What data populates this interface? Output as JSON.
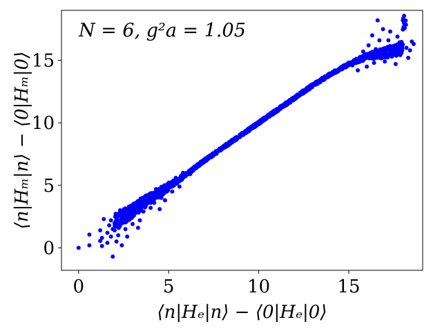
{
  "chart_data": {
    "type": "scatter",
    "title": "",
    "annotation": "N = 6, g²a = 1.05",
    "xlabel": "⟨n|Hₑ|n⟩ − ⟨0|Hₑ|0⟩",
    "ylabel": "⟨n|Hₘ|n⟩ − ⟨0|Hₘ|0⟩",
    "xlim": [
      -0.95,
      19.1
    ],
    "ylim": [
      -1.8,
      19.0
    ],
    "xticks": [
      0,
      5,
      10,
      15
    ],
    "yticks": [
      0,
      5,
      10,
      15
    ],
    "xtick_labels": [
      "0",
      "5",
      "10",
      "15"
    ],
    "ytick_labels": [
      "0",
      "5",
      "10",
      "15"
    ],
    "grid": false,
    "legend": "none",
    "marker_color": "#0000ff",
    "series": [
      {
        "trend": [
          [
            2.0,
            2.0
          ],
          [
            3.0,
            3.0
          ],
          [
            4.0,
            4.0
          ],
          [
            5.0,
            4.9
          ],
          [
            6.0,
            5.9
          ],
          [
            7.0,
            7.0
          ],
          [
            8.0,
            8.0
          ],
          [
            9.0,
            9.0
          ],
          [
            10.0,
            10.0
          ],
          [
            11.0,
            11.0
          ],
          [
            12.0,
            12.0
          ],
          [
            13.0,
            13.0
          ],
          [
            14.0,
            13.9
          ],
          [
            15.0,
            14.7
          ],
          [
            16.0,
            15.3
          ],
          [
            17.0,
            15.6
          ],
          [
            18.0,
            16.0
          ]
        ],
        "points": [
          [
            0.0,
            0.0
          ],
          [
            0.6,
            0.2
          ],
          [
            0.6,
            1.05
          ],
          [
            1.2,
            0.55
          ],
          [
            1.2,
            1.4
          ],
          [
            1.3,
            0.15
          ],
          [
            1.3,
            0.8
          ],
          [
            1.4,
            2.3
          ],
          [
            1.6,
            0.4
          ],
          [
            1.6,
            1.2
          ],
          [
            1.7,
            1.8
          ],
          [
            1.8,
            2.2
          ],
          [
            1.8,
            0.9
          ],
          [
            1.9,
            1.5
          ],
          [
            1.9,
            -0.7
          ],
          [
            2.0,
            1.4
          ],
          [
            2.1,
            0.5
          ],
          [
            2.1,
            2.6
          ],
          [
            2.2,
            1.7
          ],
          [
            2.2,
            1.0
          ],
          [
            2.3,
            3.0
          ],
          [
            2.4,
            0.2
          ],
          [
            2.4,
            2.2
          ],
          [
            2.6,
            1.5
          ],
          [
            2.6,
            2.9
          ],
          [
            2.7,
            0.9
          ],
          [
            2.8,
            3.3
          ],
          [
            3.0,
            1.9
          ],
          [
            3.0,
            2.5
          ],
          [
            3.1,
            3.4
          ],
          [
            3.3,
            1.6
          ],
          [
            3.4,
            2.2
          ],
          [
            3.5,
            3.6
          ],
          [
            3.6,
            2.9
          ],
          [
            3.8,
            4.2
          ],
          [
            4.0,
            3.2
          ],
          [
            4.2,
            3.6
          ],
          [
            4.3,
            4.7
          ],
          [
            4.5,
            3.1
          ],
          [
            4.6,
            4.0
          ],
          [
            4.8,
            3.8
          ],
          [
            5.0,
            5.2
          ],
          [
            5.2,
            4.5
          ],
          [
            5.4,
            5.6
          ],
          [
            5.6,
            4.9
          ],
          [
            5.8,
            6.0
          ],
          [
            6.2,
            5.9
          ],
          [
            15.2,
            14.6
          ],
          [
            15.5,
            14.2
          ],
          [
            15.6,
            15.2
          ],
          [
            15.8,
            15.7
          ],
          [
            16.0,
            14.5
          ],
          [
            16.1,
            16.2
          ],
          [
            16.2,
            15.6
          ],
          [
            16.3,
            17.0
          ],
          [
            16.4,
            14.8
          ],
          [
            16.5,
            15.9
          ],
          [
            16.6,
            18.2
          ],
          [
            16.7,
            16.6
          ],
          [
            16.8,
            15.2
          ],
          [
            16.9,
            17.5
          ],
          [
            17.0,
            14.9
          ],
          [
            17.1,
            15.8
          ],
          [
            17.2,
            16.6
          ],
          [
            17.3,
            17.3
          ],
          [
            17.4,
            15.4
          ],
          [
            17.5,
            16.1
          ],
          [
            17.6,
            14.7
          ],
          [
            17.7,
            16.9
          ],
          [
            17.8,
            15.5
          ],
          [
            17.9,
            15.9
          ],
          [
            18.0,
            18.2
          ],
          [
            18.2,
            16.0
          ],
          [
            18.3,
            15.2
          ],
          [
            18.4,
            15.8
          ],
          [
            18.5,
            16.5
          ],
          [
            18.6,
            16.3
          ]
        ]
      }
    ]
  }
}
